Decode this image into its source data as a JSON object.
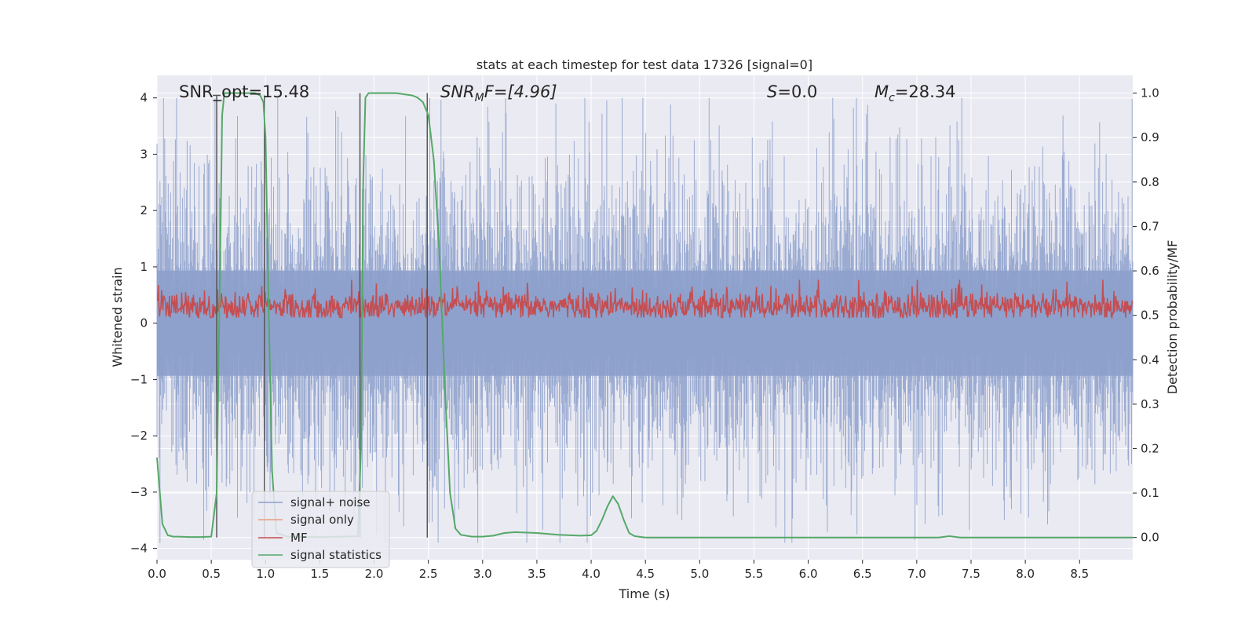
{
  "chart_data": {
    "type": "line",
    "title": "stats at each timestep for test data 17326 [signal=0]",
    "xlabel": "Time (s)",
    "ylabel_left": "Whitened strain",
    "ylabel_right": "Detection probability/MF",
    "xlim": [
      0.0,
      8.99
    ],
    "ylim_left": [
      -4.2,
      4.4
    ],
    "ylim_right": [
      -0.05,
      1.04
    ],
    "x_ticks": [
      "0.0",
      "0.5",
      "1.0",
      "1.5",
      "2.0",
      "2.5",
      "3.0",
      "3.5",
      "4.0",
      "4.5",
      "5.0",
      "5.5",
      "6.0",
      "6.5",
      "7.0",
      "7.5",
      "8.0",
      "8.5"
    ],
    "y_left_ticks": [
      "4",
      "3",
      "2",
      "1",
      "0",
      "−1",
      "−2",
      "−3",
      "−4"
    ],
    "y_right_ticks": [
      "1.0",
      "0.9",
      "0.8",
      "0.7",
      "0.6",
      "0.5",
      "0.4",
      "0.3",
      "0.2",
      "0.1",
      "0.0"
    ],
    "grid": true,
    "legend_position": "lower-left",
    "annotations": {
      "snr_opt": "SNR_opt=15.48",
      "snr_mf_main": "SNR",
      "snr_mf_sub": "M",
      "snr_mf_rest": "F=[4.96]",
      "s_var": "S",
      "s_rest": "=0.0",
      "mc_var": "M",
      "mc_sub": "c",
      "mc_rest": "=28.34"
    },
    "series": [
      {
        "name": "signal+ noise",
        "color": "#8da0cb",
        "axis": "left",
        "approx_envelope": {
          "x_range": [
            0.0,
            8.99
          ],
          "upper_peak": 4.0,
          "lower_peak": -3.9,
          "typical_band": [
            -1.7,
            1.7
          ]
        }
      },
      {
        "name": "signal only",
        "color": "#e8a07f",
        "axis": "left",
        "values": []
      },
      {
        "name": "MF",
        "color": "#c44e52",
        "axis": "right",
        "approx_band": {
          "mean": 0.52,
          "min": 0.495,
          "max": 0.58
        }
      },
      {
        "name": "signal statistics",
        "color": "#55a868",
        "axis": "right",
        "x": [
          0.0,
          0.05,
          0.1,
          0.15,
          0.2,
          0.3,
          0.4,
          0.5,
          0.55,
          0.58,
          0.6,
          0.62,
          0.65,
          0.7,
          0.8,
          0.9,
          0.95,
          0.98,
          1.0,
          1.03,
          1.06,
          1.1,
          1.2,
          1.3,
          1.5,
          1.7,
          1.85,
          1.88,
          1.9,
          1.92,
          1.95,
          2.0,
          2.2,
          2.35,
          2.4,
          2.45,
          2.5,
          2.55,
          2.6,
          2.65,
          2.7,
          2.75,
          2.8,
          2.9,
          3.0,
          3.1,
          3.2,
          3.3,
          3.5,
          3.7,
          3.9,
          4.0,
          4.05,
          4.1,
          4.15,
          4.2,
          4.25,
          4.3,
          4.35,
          4.4,
          4.5,
          5.0,
          6.0,
          7.0,
          7.2,
          7.3,
          7.4,
          7.6,
          8.0,
          8.5,
          8.99
        ],
        "y": [
          0.18,
          0.03,
          0.005,
          0.002,
          0.002,
          0.001,
          0.001,
          0.002,
          0.1,
          0.6,
          0.95,
          1.0,
          1.0,
          1.0,
          1.0,
          1.0,
          0.995,
          0.98,
          0.9,
          0.5,
          0.15,
          0.01,
          0.002,
          0.001,
          0.001,
          0.002,
          0.003,
          0.2,
          0.8,
          0.99,
          1.0,
          1.0,
          1.0,
          0.995,
          0.99,
          0.98,
          0.95,
          0.85,
          0.65,
          0.35,
          0.1,
          0.02,
          0.006,
          0.002,
          0.002,
          0.004,
          0.01,
          0.012,
          0.01,
          0.006,
          0.004,
          0.005,
          0.015,
          0.04,
          0.07,
          0.093,
          0.075,
          0.04,
          0.01,
          0.003,
          0.0,
          0.0,
          0.0,
          0.0,
          0.0,
          0.003,
          0.0,
          0.0,
          0.0,
          0.0,
          0.0
        ]
      }
    ],
    "vertical_markers": [
      {
        "x": 0.55,
        "y_top": 0.995,
        "y_bottom": 0.0
      },
      {
        "x": 0.99,
        "y_top": 0.995,
        "y_bottom": 0.0
      },
      {
        "x": 1.87,
        "y_top": 1.0,
        "y_bottom": 0.0
      },
      {
        "x": 2.49,
        "y_top": 1.0,
        "y_bottom": 0.0
      }
    ]
  }
}
